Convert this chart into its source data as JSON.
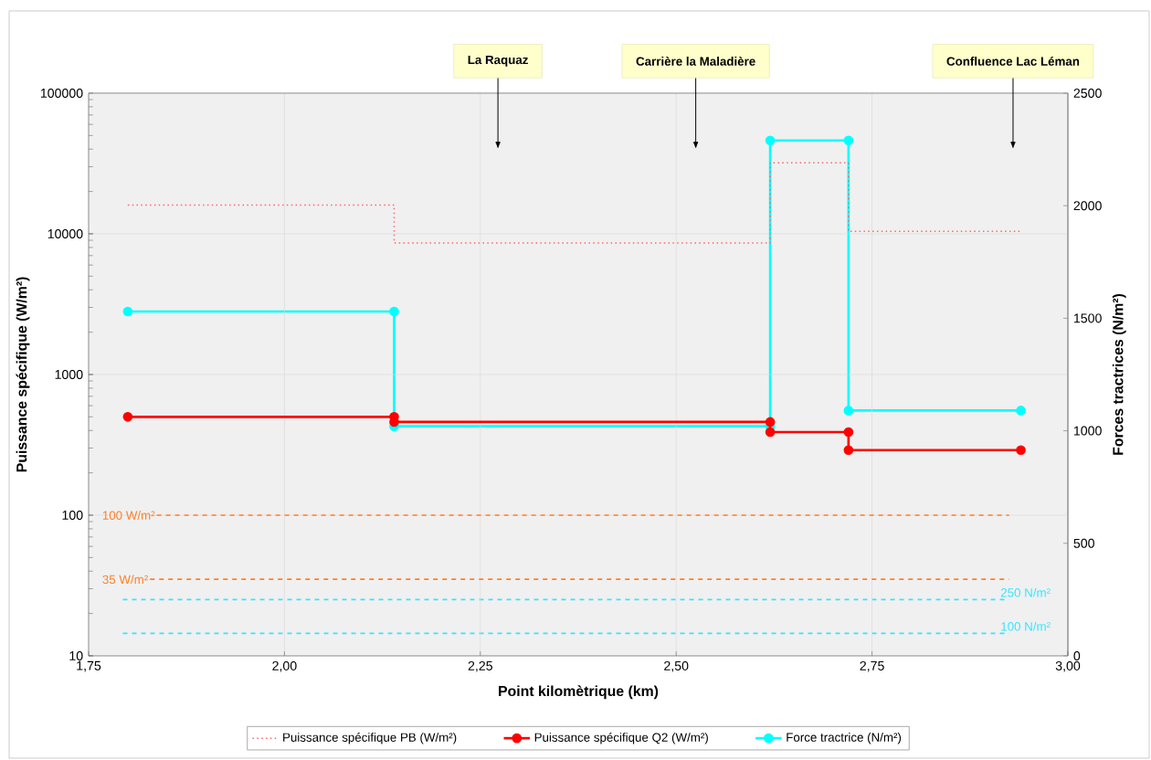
{
  "chart_data": {
    "type": "line",
    "xlabel": "Point kilomètrique (km)",
    "ylabel": "Puissance spécifique (W/m²)",
    "y2label": "Forces tractrices (N/m²)",
    "xlim": [
      1.75,
      3.0
    ],
    "xticks": [
      {
        "value": 1.75,
        "label": "1,75"
      },
      {
        "value": 2.0,
        "label": "2,00"
      },
      {
        "value": 2.25,
        "label": "2,25"
      },
      {
        "value": 2.5,
        "label": "2,50"
      },
      {
        "value": 2.75,
        "label": "2,75"
      },
      {
        "value": 3.0,
        "label": "3,00"
      }
    ],
    "ylim": [
      10,
      100000
    ],
    "yticks": [
      10,
      100,
      1000,
      10000,
      100000
    ],
    "log": "y",
    "y2lim": [
      0,
      2500
    ],
    "y2ticks": [
      0,
      500,
      1000,
      1500,
      2000,
      2500
    ],
    "grid": true,
    "legend": "bottom",
    "series": [
      {
        "name": "Puissance spécifique PB (W/m²)",
        "color": "#ff6666",
        "line_style": "dotted",
        "marker": "none",
        "x": [
          1.8,
          2.14,
          2.14,
          2.62,
          2.62,
          2.72,
          2.72,
          2.94
        ],
        "values": [
          16000,
          16000,
          8600,
          8600,
          32000,
          32000,
          10400,
          10400
        ]
      },
      {
        "name": "Puissance spécifique Q2 (W/m²)",
        "color": "#ff0000",
        "line_style": "solid",
        "marker": "circle",
        "x": [
          1.8,
          2.14,
          2.14,
          2.62,
          2.62,
          2.72,
          2.72,
          2.94
        ],
        "values": [
          500,
          500,
          460,
          460,
          390,
          390,
          290,
          290
        ]
      },
      {
        "name": "Force tractrice (N/m²)",
        "color": "#00ffff",
        "line_style": "solid",
        "marker": "circle",
        "axis": "y2",
        "x": [
          1.8,
          2.14,
          2.14,
          2.62,
          2.62,
          2.72,
          2.72,
          2.94
        ],
        "values": [
          1530,
          1530,
          1020,
          1020,
          2290,
          2290,
          1090,
          1090
        ]
      }
    ],
    "ref_lines": [
      {
        "axis": "y",
        "value": 100,
        "label": "100 W/m²",
        "color": "#ff7f27",
        "line_style": "dashed"
      },
      {
        "axis": "y",
        "value": 35,
        "label": "35 W/m²",
        "color": "#ff7f27",
        "line_style": "dashed"
      },
      {
        "axis": "y2",
        "value": 250,
        "label": "250 N/m²",
        "color": "#33e6ff",
        "line_style": "dashed"
      },
      {
        "axis": "y2",
        "value": 100,
        "label": "100 N/m²",
        "color": "#33e6ff",
        "line_style": "dashed"
      }
    ],
    "annotations": [
      "La Raquaz",
      "Carrière la Maladière",
      "Confluence Lac Léman"
    ]
  }
}
